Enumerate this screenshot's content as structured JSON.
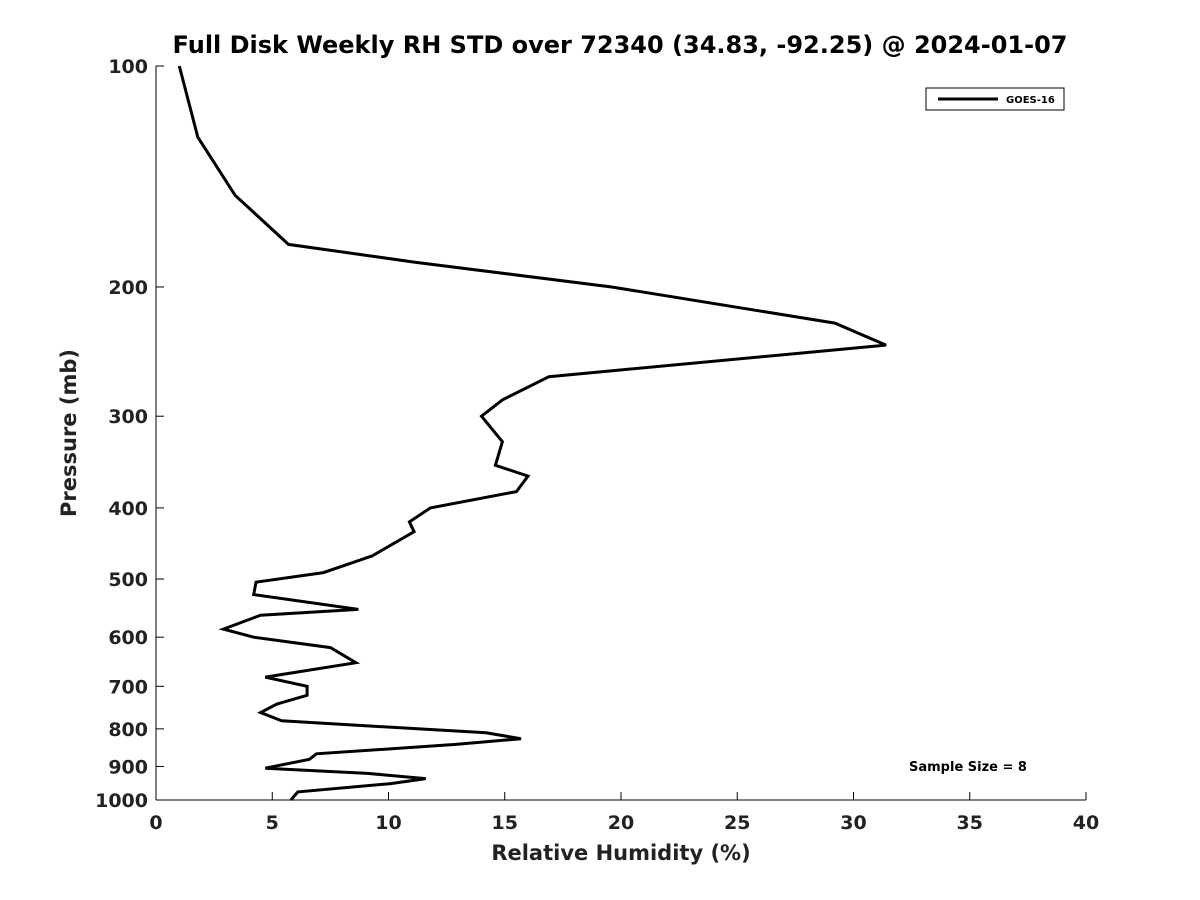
{
  "chart_data": {
    "type": "line",
    "title": "Full Disk Weekly RH STD over 72340 (34.83, -92.25) @ 2024-01-07",
    "xlabel": "Relative Humidity (%)",
    "ylabel": "Pressure (mb)",
    "xlim": [
      0,
      40
    ],
    "ylim": [
      100,
      1000
    ],
    "y_scale": "log",
    "y_reversed": true,
    "x_ticks": [
      0,
      5,
      10,
      15,
      20,
      25,
      30,
      35,
      40
    ],
    "y_ticks": [
      100,
      200,
      300,
      400,
      500,
      600,
      700,
      800,
      900,
      1000
    ],
    "grid": false,
    "legend": {
      "position": "top-right",
      "entries": [
        "GOES-16"
      ]
    },
    "annotation": "Sample Size = 8",
    "series": [
      {
        "name": "GOES-16",
        "color": "#000000",
        "points": [
          [
            1.0,
            100
          ],
          [
            1.8,
            125
          ],
          [
            3.4,
            150
          ],
          [
            5.7,
            175
          ],
          [
            11.1,
            185
          ],
          [
            19.6,
            200
          ],
          [
            29.2,
            224
          ],
          [
            31.4,
            240
          ],
          [
            16.9,
            265
          ],
          [
            14.9,
            285
          ],
          [
            14.0,
            300
          ],
          [
            14.9,
            325
          ],
          [
            14.6,
            350
          ],
          [
            16.0,
            362
          ],
          [
            15.5,
            380
          ],
          [
            11.8,
            400
          ],
          [
            10.9,
            418
          ],
          [
            11.1,
            431
          ],
          [
            9.3,
            465
          ],
          [
            7.2,
            490
          ],
          [
            4.3,
            505
          ],
          [
            4.2,
            525
          ],
          [
            8.7,
            550
          ],
          [
            4.5,
            560
          ],
          [
            2.9,
            585
          ],
          [
            4.2,
            600
          ],
          [
            7.5,
            620
          ],
          [
            8.6,
            650
          ],
          [
            4.7,
            680
          ],
          [
            6.5,
            700
          ],
          [
            6.5,
            720
          ],
          [
            5.2,
            740
          ],
          [
            4.5,
            760
          ],
          [
            5.4,
            780
          ],
          [
            14.2,
            810
          ],
          [
            15.7,
            825
          ],
          [
            12.9,
            840
          ],
          [
            6.9,
            865
          ],
          [
            6.6,
            880
          ],
          [
            4.7,
            905
          ],
          [
            9.1,
            920
          ],
          [
            11.6,
            935
          ],
          [
            10.1,
            950
          ],
          [
            6.1,
            975
          ],
          [
            5.8,
            1000
          ]
        ]
      }
    ]
  }
}
